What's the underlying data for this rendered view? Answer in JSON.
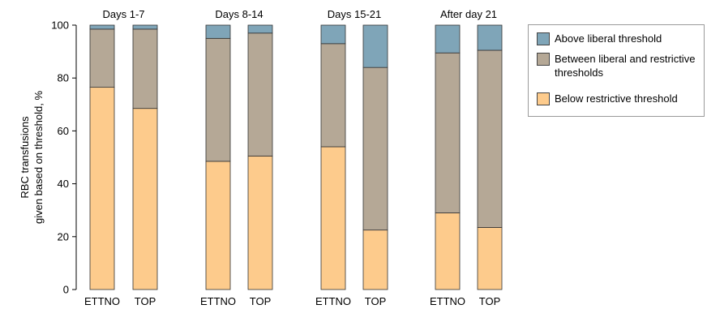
{
  "chart_data": {
    "type": "bar",
    "stacked": true,
    "ylabel_lines": [
      "RBC transfusions",
      "given based on threshold, %"
    ],
    "ylim": [
      0,
      100
    ],
    "yticks": [
      0,
      20,
      40,
      60,
      80,
      100
    ],
    "groups": [
      {
        "label": "Days 1-7",
        "bars": [
          "ETTNO",
          "TOP"
        ]
      },
      {
        "label": "Days 8-14",
        "bars": [
          "ETTNO",
          "TOP"
        ]
      },
      {
        "label": "Days 15-21",
        "bars": [
          "ETTNO",
          "TOP"
        ]
      },
      {
        "label": "After day 21",
        "bars": [
          "ETTNO",
          "TOP"
        ]
      }
    ],
    "series": [
      {
        "name": "Below restrictive threshold",
        "color": "#fdcb8c",
        "values": [
          76.5,
          68.5,
          48.5,
          50.5,
          54,
          22.5,
          29,
          23.5
        ]
      },
      {
        "name": "Between liberal and restrictive thresholds",
        "color": "#b5a896",
        "values": [
          22,
          30,
          46.5,
          46.5,
          39,
          61.5,
          60.5,
          67
        ]
      },
      {
        "name": "Above liberal threshold",
        "color": "#7fa5b8",
        "values": [
          1.5,
          1.5,
          5,
          3,
          7,
          16,
          10.5,
          9.5
        ]
      }
    ],
    "legend": {
      "position": "right",
      "items": [
        {
          "label": "Above liberal threshold",
          "color": "#7fa5b8"
        },
        {
          "label": "Between liberal and restrictive thresholds",
          "color": "#b5a896"
        },
        {
          "label": "Below restrictive threshold",
          "color": "#fdcb8c"
        }
      ]
    },
    "grid": false
  }
}
